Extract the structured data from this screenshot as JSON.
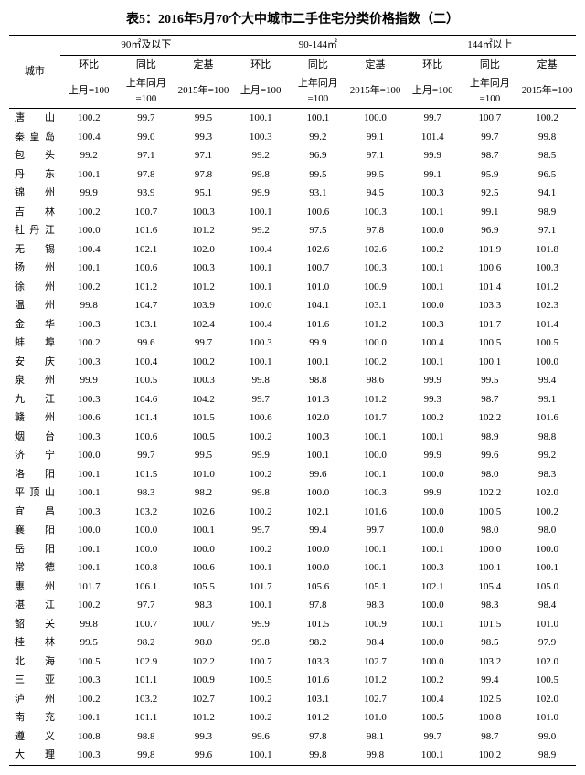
{
  "title": "表5：2016年5月70个大中城市二手住宅分类价格指数（二）",
  "header": {
    "city": "城市",
    "group1": "90㎡及以下",
    "group2": "90-144㎡",
    "group3": "144㎡以上",
    "mom_l1": "环比",
    "mom_l2": "上月=100",
    "yoy_l1": "同比",
    "yoy_l2": "上年同月=100",
    "base_l1": "定基",
    "base_l2": "2015年=100"
  },
  "rows": [
    {
      "c": "唐　　山",
      "v": [
        "100.2",
        "99.7",
        "99.5",
        "100.1",
        "100.1",
        "100.0",
        "99.7",
        "100.7",
        "100.2"
      ]
    },
    {
      "c": "秦 皇 岛",
      "v": [
        "100.4",
        "99.0",
        "99.3",
        "100.3",
        "99.2",
        "99.1",
        "101.4",
        "99.7",
        "99.8"
      ]
    },
    {
      "c": "包　　头",
      "v": [
        "99.2",
        "97.1",
        "97.1",
        "99.2",
        "96.9",
        "97.1",
        "99.9",
        "98.7",
        "98.5"
      ]
    },
    {
      "c": "丹　　东",
      "v": [
        "100.1",
        "97.8",
        "97.8",
        "99.8",
        "99.5",
        "99.5",
        "99.1",
        "95.9",
        "96.5"
      ]
    },
    {
      "c": "锦　　州",
      "v": [
        "99.9",
        "93.9",
        "95.1",
        "99.9",
        "93.1",
        "94.5",
        "100.3",
        "92.5",
        "94.1"
      ]
    },
    {
      "c": "吉　　林",
      "v": [
        "100.2",
        "100.7",
        "100.3",
        "100.1",
        "100.6",
        "100.3",
        "100.1",
        "99.1",
        "98.9"
      ]
    },
    {
      "c": "牡 丹 江",
      "v": [
        "100.0",
        "101.6",
        "101.2",
        "99.2",
        "97.5",
        "97.8",
        "100.0",
        "96.9",
        "97.1"
      ]
    },
    {
      "c": "无　　锡",
      "v": [
        "100.4",
        "102.1",
        "102.0",
        "100.4",
        "102.6",
        "102.6",
        "100.2",
        "101.9",
        "101.8"
      ]
    },
    {
      "c": "扬　　州",
      "v": [
        "100.1",
        "100.6",
        "100.3",
        "100.1",
        "100.7",
        "100.3",
        "100.1",
        "100.6",
        "100.3"
      ]
    },
    {
      "c": "徐　　州",
      "v": [
        "100.2",
        "101.2",
        "101.2",
        "100.1",
        "101.0",
        "100.9",
        "100.1",
        "101.4",
        "101.2"
      ]
    },
    {
      "c": "温　　州",
      "v": [
        "99.8",
        "104.7",
        "103.9",
        "100.0",
        "104.1",
        "103.1",
        "100.0",
        "103.3",
        "102.3"
      ]
    },
    {
      "c": "金　　华",
      "v": [
        "100.3",
        "103.1",
        "102.4",
        "100.4",
        "101.6",
        "101.2",
        "100.3",
        "101.7",
        "101.4"
      ]
    },
    {
      "c": "蚌　　埠",
      "v": [
        "100.2",
        "99.6",
        "99.7",
        "100.3",
        "99.9",
        "100.0",
        "100.4",
        "100.5",
        "100.5"
      ]
    },
    {
      "c": "安　　庆",
      "v": [
        "100.3",
        "100.4",
        "100.2",
        "100.1",
        "100.1",
        "100.2",
        "100.1",
        "100.1",
        "100.0"
      ]
    },
    {
      "c": "泉　　州",
      "v": [
        "99.9",
        "100.5",
        "100.3",
        "99.8",
        "98.8",
        "98.6",
        "99.9",
        "99.5",
        "99.4"
      ]
    },
    {
      "c": "九　　江",
      "v": [
        "100.3",
        "104.6",
        "104.2",
        "99.7",
        "101.3",
        "101.2",
        "99.3",
        "98.7",
        "99.1"
      ]
    },
    {
      "c": "赣　　州",
      "v": [
        "100.6",
        "101.4",
        "101.5",
        "100.6",
        "102.0",
        "101.7",
        "100.2",
        "102.2",
        "101.6"
      ]
    },
    {
      "c": "烟　　台",
      "v": [
        "100.3",
        "100.6",
        "100.5",
        "100.2",
        "100.3",
        "100.1",
        "100.1",
        "98.9",
        "98.8"
      ]
    },
    {
      "c": "济　　宁",
      "v": [
        "100.0",
        "99.7",
        "99.5",
        "99.9",
        "100.1",
        "100.0",
        "99.9",
        "99.6",
        "99.2"
      ]
    },
    {
      "c": "洛　　阳",
      "v": [
        "100.1",
        "101.5",
        "101.0",
        "100.2",
        "99.6",
        "100.1",
        "100.0",
        "98.0",
        "98.3"
      ]
    },
    {
      "c": "平 顶 山",
      "v": [
        "100.1",
        "98.3",
        "98.2",
        "99.8",
        "100.0",
        "100.3",
        "99.9",
        "102.2",
        "102.0"
      ]
    },
    {
      "c": "宜　　昌",
      "v": [
        "100.3",
        "103.2",
        "102.6",
        "100.2",
        "102.1",
        "101.6",
        "100.0",
        "100.5",
        "100.2"
      ]
    },
    {
      "c": "襄　　阳",
      "v": [
        "100.0",
        "100.0",
        "100.1",
        "99.7",
        "99.4",
        "99.7",
        "100.0",
        "98.0",
        "98.0"
      ]
    },
    {
      "c": "岳　　阳",
      "v": [
        "100.1",
        "100.0",
        "100.0",
        "100.2",
        "100.0",
        "100.1",
        "100.1",
        "100.0",
        "100.0"
      ]
    },
    {
      "c": "常　　德",
      "v": [
        "100.1",
        "100.8",
        "100.6",
        "100.1",
        "100.0",
        "100.1",
        "100.3",
        "100.1",
        "100.1"
      ]
    },
    {
      "c": "惠　　州",
      "v": [
        "101.7",
        "106.1",
        "105.5",
        "101.7",
        "105.6",
        "105.1",
        "102.1",
        "105.4",
        "105.0"
      ]
    },
    {
      "c": "湛　　江",
      "v": [
        "100.2",
        "97.7",
        "98.3",
        "100.1",
        "97.8",
        "98.3",
        "100.0",
        "98.3",
        "98.4"
      ]
    },
    {
      "c": "韶　　关",
      "v": [
        "99.8",
        "100.7",
        "100.7",
        "99.9",
        "101.5",
        "100.9",
        "100.1",
        "101.5",
        "101.0"
      ]
    },
    {
      "c": "桂　　林",
      "v": [
        "99.5",
        "98.2",
        "98.0",
        "99.8",
        "98.2",
        "98.4",
        "100.0",
        "98.5",
        "97.9"
      ]
    },
    {
      "c": "北　　海",
      "v": [
        "100.5",
        "102.9",
        "102.2",
        "100.7",
        "103.3",
        "102.7",
        "100.0",
        "103.2",
        "102.0"
      ]
    },
    {
      "c": "三　　亚",
      "v": [
        "100.3",
        "101.1",
        "100.9",
        "100.5",
        "101.6",
        "101.2",
        "100.2",
        "99.4",
        "100.5"
      ]
    },
    {
      "c": "泸　　州",
      "v": [
        "100.2",
        "103.2",
        "102.7",
        "100.2",
        "103.1",
        "102.7",
        "100.4",
        "102.5",
        "102.0"
      ]
    },
    {
      "c": "南　　充",
      "v": [
        "100.1",
        "101.1",
        "101.2",
        "100.2",
        "101.2",
        "101.0",
        "100.5",
        "100.8",
        "101.0"
      ]
    },
    {
      "c": "遵　　义",
      "v": [
        "100.8",
        "98.8",
        "99.3",
        "99.6",
        "97.8",
        "98.1",
        "99.7",
        "98.7",
        "99.0"
      ]
    },
    {
      "c": "大　　理",
      "v": [
        "100.3",
        "99.8",
        "99.6",
        "100.1",
        "99.8",
        "99.8",
        "100.1",
        "100.2",
        "98.9"
      ]
    }
  ]
}
